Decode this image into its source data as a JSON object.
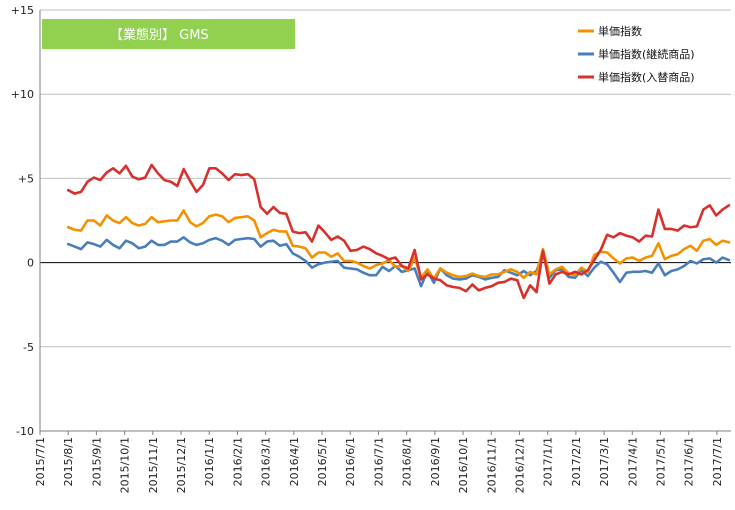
{
  "chart_data": {
    "type": "line",
    "title": "【業態別】 GMS",
    "ylim": [
      -10,
      15
    ],
    "yticks": [
      15,
      10,
      5,
      0,
      -5,
      -10
    ],
    "ytick_labels": [
      "+15",
      "+10",
      "+5",
      "0",
      "-5",
      "-10"
    ],
    "x_tick_labels": [
      "2015/7/1",
      "2015/8/1",
      "2015/9/1",
      "2015/10/1",
      "2015/11/1",
      "2015/12/1",
      "2016/1/1",
      "2016/2/1",
      "2016/3/1",
      "2016/4/1",
      "2016/5/1",
      "2016/6/1",
      "2016/7/1",
      "2016/8/1",
      "2016/9/1",
      "2016/10/1",
      "2016/11/1",
      "2016/12/1",
      "2017/1/1",
      "2017/2/1",
      "2017/3/1",
      "2017/4/1",
      "2017/5/1",
      "2017/6/1",
      "2017/7/1"
    ],
    "grid": "horizontal",
    "legend_position": "top-right",
    "series": [
      {
        "name": "単価指数",
        "color": "#f39200",
        "values": [
          2.1,
          1.95,
          1.9,
          2.5,
          2.5,
          2.2,
          2.8,
          2.5,
          2.35,
          2.7,
          2.35,
          2.2,
          2.3,
          2.7,
          2.4,
          2.45,
          2.5,
          2.5,
          3.1,
          2.4,
          2.15,
          2.35,
          2.75,
          2.85,
          2.75,
          2.4,
          2.65,
          2.7,
          2.75,
          2.5,
          1.5,
          1.75,
          1.95,
          1.85,
          1.85,
          1.0,
          0.95,
          0.85,
          0.3,
          0.6,
          0.6,
          0.35,
          0.55,
          0.1,
          0.1,
          0.0,
          -0.2,
          -0.35,
          -0.15,
          -0.05,
          0.15,
          -0.25,
          -0.2,
          -0.5,
          0.3,
          -0.9,
          -0.4,
          -0.95,
          -0.35,
          -0.6,
          -0.75,
          -0.85,
          -0.8,
          -0.65,
          -0.8,
          -0.85,
          -0.7,
          -0.7,
          -0.55,
          -0.4,
          -0.55,
          -0.9,
          -0.55,
          -0.7,
          0.8,
          -0.7,
          -0.4,
          -0.25,
          -0.65,
          -0.75,
          -0.3,
          -0.55,
          0.45,
          0.65,
          0.6,
          0.25,
          -0.05,
          0.25,
          0.3,
          0.1,
          0.3,
          0.4,
          1.15,
          0.2,
          0.4,
          0.5,
          0.8,
          1.0,
          0.7,
          1.3,
          1.4,
          1.05,
          1.3,
          1.2
        ]
      },
      {
        "name": "単価指数(継続商品)",
        "color": "#4a7ebb",
        "values": [
          1.1,
          0.95,
          0.8,
          1.2,
          1.1,
          0.95,
          1.35,
          1.05,
          0.85,
          1.3,
          1.15,
          0.85,
          0.95,
          1.3,
          1.05,
          1.05,
          1.25,
          1.25,
          1.5,
          1.2,
          1.05,
          1.15,
          1.35,
          1.45,
          1.3,
          1.05,
          1.35,
          1.4,
          1.45,
          1.4,
          0.95,
          1.25,
          1.3,
          1.0,
          1.1,
          0.55,
          0.35,
          0.1,
          -0.3,
          -0.1,
          0.0,
          0.05,
          0.1,
          -0.3,
          -0.35,
          -0.4,
          -0.6,
          -0.75,
          -0.75,
          -0.25,
          -0.5,
          -0.2,
          -0.55,
          -0.45,
          -0.35,
          -1.4,
          -0.5,
          -1.2,
          -0.35,
          -0.75,
          -0.95,
          -1.0,
          -0.95,
          -0.75,
          -0.85,
          -1.0,
          -0.9,
          -0.85,
          -0.45,
          -0.6,
          -0.75,
          -0.5,
          -0.75,
          -0.5,
          0.55,
          -0.9,
          -0.45,
          -0.4,
          -0.85,
          -0.9,
          -0.45,
          -0.8,
          -0.3,
          0.05,
          -0.1,
          -0.6,
          -1.15,
          -0.6,
          -0.55,
          -0.55,
          -0.5,
          -0.6,
          -0.05,
          -0.75,
          -0.5,
          -0.4,
          -0.2,
          0.1,
          -0.05,
          0.2,
          0.25,
          0.0,
          0.3,
          0.15
        ]
      },
      {
        "name": "単価指数(入替商品)",
        "color": "#d7312e",
        "values": [
          4.3,
          4.1,
          4.2,
          4.8,
          5.05,
          4.9,
          5.35,
          5.6,
          5.3,
          5.75,
          5.1,
          4.95,
          5.05,
          5.8,
          5.3,
          4.9,
          4.8,
          4.55,
          5.55,
          4.85,
          4.2,
          4.6,
          5.6,
          5.6,
          5.3,
          4.9,
          5.25,
          5.2,
          5.25,
          4.95,
          3.3,
          2.9,
          3.3,
          2.95,
          2.9,
          1.85,
          1.75,
          1.8,
          1.25,
          2.2,
          1.8,
          1.35,
          1.55,
          1.3,
          0.7,
          0.75,
          0.95,
          0.8,
          0.55,
          0.4,
          0.2,
          0.3,
          -0.2,
          -0.35,
          0.75,
          -1.0,
          -0.7,
          -0.95,
          -1.05,
          -1.35,
          -1.45,
          -1.5,
          -1.7,
          -1.3,
          -1.65,
          -1.5,
          -1.4,
          -1.2,
          -1.15,
          -0.95,
          -1.05,
          -2.1,
          -1.35,
          -1.75,
          0.7,
          -1.25,
          -0.7,
          -0.55,
          -0.7,
          -0.55,
          -0.7,
          -0.45,
          0.15,
          0.75,
          1.65,
          1.5,
          1.75,
          1.6,
          1.5,
          1.25,
          1.6,
          1.55,
          3.15,
          2.0,
          2.0,
          1.9,
          2.2,
          2.1,
          2.15,
          3.15,
          3.4,
          2.8,
          3.15,
          3.4
        ]
      }
    ]
  }
}
